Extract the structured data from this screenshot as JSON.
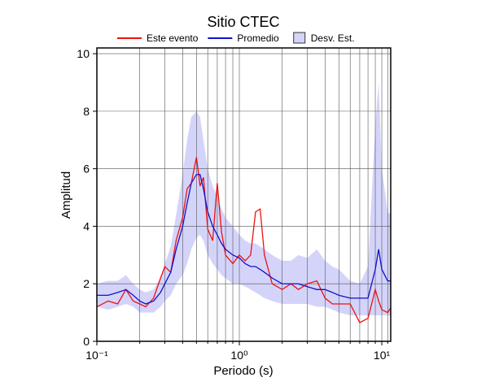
{
  "chart_data": {
    "type": "line",
    "title": "Sitio CTEC",
    "xlabel": "Periodo (s)",
    "ylabel": "Amplitud",
    "xscale": "log",
    "grid": true,
    "legend": "top",
    "xlim": [
      0.1,
      11.55
    ],
    "ylim": [
      0,
      10.2
    ],
    "xticks": [
      {
        "value": 0.1,
        "label": "10⁻¹"
      },
      {
        "value": 1,
        "label": "10⁰"
      },
      {
        "value": 10,
        "label": "10¹"
      }
    ],
    "xminorticks": [
      0.2,
      0.3,
      0.4,
      0.5,
      0.6,
      0.7,
      0.8,
      0.9,
      2,
      3,
      4,
      5,
      6,
      7,
      8,
      9,
      11
    ],
    "yticks": [
      0,
      2,
      4,
      6,
      8,
      10
    ],
    "x": [
      0.1,
      0.12,
      0.14,
      0.16,
      0.18,
      0.2,
      0.22,
      0.25,
      0.28,
      0.3,
      0.33,
      0.36,
      0.4,
      0.43,
      0.46,
      0.5,
      0.53,
      0.56,
      0.6,
      0.65,
      0.7,
      0.75,
      0.8,
      0.9,
      1.0,
      1.1,
      1.2,
      1.3,
      1.4,
      1.5,
      1.7,
      2,
      2.3,
      2.6,
      3,
      3.5,
      4,
      4.5,
      5,
      6,
      7,
      8,
      9,
      9.5,
      10,
      11,
      11.5
    ],
    "series": [
      {
        "name": "Este evento",
        "color": "#ee1111",
        "values": [
          1.2,
          1.4,
          1.3,
          1.8,
          1.4,
          1.3,
          1.2,
          1.5,
          2.2,
          2.6,
          2.4,
          3.5,
          4.3,
          5.3,
          5.5,
          6.4,
          5.4,
          5.7,
          3.9,
          3.5,
          5.5,
          3.8,
          3.0,
          2.7,
          3.0,
          2.8,
          3.0,
          4.5,
          4.6,
          3.0,
          2.0,
          1.8,
          2.0,
          1.8,
          2.0,
          2.1,
          1.5,
          1.3,
          1.3,
          1.3,
          0.65,
          0.8,
          1.8,
          1.4,
          1.1,
          1.0,
          1.15
        ]
      },
      {
        "name": "Promedio",
        "color": "#1111cc",
        "values": [
          1.6,
          1.6,
          1.7,
          1.8,
          1.6,
          1.4,
          1.3,
          1.4,
          1.7,
          2.0,
          2.4,
          3.2,
          4.0,
          4.8,
          5.5,
          5.8,
          5.8,
          5.3,
          4.5,
          4.0,
          3.7,
          3.4,
          3.2,
          3.0,
          2.9,
          2.7,
          2.6,
          2.6,
          2.5,
          2.4,
          2.2,
          2.0,
          2.0,
          2.0,
          1.9,
          1.8,
          1.8,
          1.7,
          1.6,
          1.5,
          1.5,
          1.5,
          2.5,
          3.2,
          2.5,
          2.1,
          2.1
        ]
      }
    ],
    "band": {
      "name": "Desv. Est.",
      "color": "#d4d4fa",
      "edge": "#333333",
      "lower": [
        1.2,
        1.1,
        1.2,
        1.3,
        1.2,
        1.0,
        1.0,
        1.0,
        1.2,
        1.4,
        1.6,
        2.0,
        2.3,
        2.7,
        3.2,
        3.6,
        3.7,
        3.5,
        3.0,
        2.7,
        2.5,
        2.3,
        2.2,
        2.0,
        2.0,
        1.9,
        1.8,
        1.7,
        1.6,
        1.5,
        1.4,
        1.3,
        1.3,
        1.3,
        1.3,
        1.2,
        1.2,
        1.1,
        1.0,
        0.9,
        0.9,
        0.9,
        0.9,
        0.9,
        0.9,
        0.9,
        0.9
      ],
      "upper": [
        2.0,
        2.1,
        2.1,
        2.3,
        2.0,
        1.8,
        1.7,
        1.8,
        2.2,
        2.7,
        3.3,
        4.4,
        5.8,
        7.0,
        7.8,
        8.0,
        7.8,
        7.0,
        6.0,
        5.4,
        5.0,
        4.6,
        4.3,
        4.0,
        3.7,
        3.5,
        3.4,
        3.4,
        3.3,
        3.2,
        3.0,
        2.8,
        2.8,
        3.0,
        2.9,
        3.2,
        2.8,
        2.6,
        2.5,
        2.1,
        2.0,
        2.6,
        7.5,
        9.0,
        6.0,
        4.5,
        4.4
      ]
    }
  }
}
